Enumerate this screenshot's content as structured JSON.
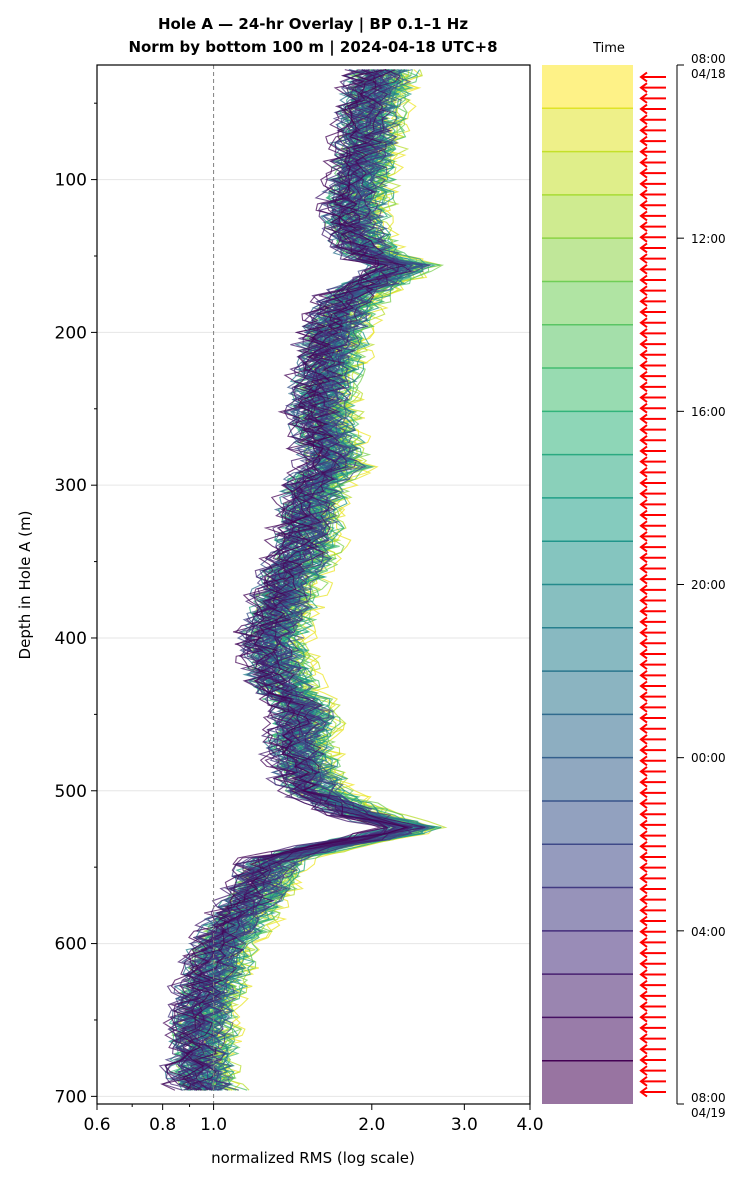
{
  "chart_data": [
    {
      "type": "line",
      "title": "Hole A — 24-hr Overlay  |  BP 0.1–1 Hz",
      "subtitle": "Norm by bottom 100 m  |  2024-04-18 UTC+8",
      "xlabel": "normalized RMS  (log scale)",
      "ylabel": "Depth in Hole A (m)",
      "x_scale": "log",
      "xlim": [
        0.6,
        4.0
      ],
      "ylim": [
        705,
        25
      ],
      "y_inverted": true,
      "x_ticks": [
        "0.6",
        "0.8",
        "1.0",
        "2.0",
        "3.0",
        "4.0"
      ],
      "x_tick_values": [
        0.6,
        0.8,
        1.0,
        2.0,
        3.0,
        4.0
      ],
      "y_ticks": [
        "100",
        "200",
        "300",
        "400",
        "500",
        "600",
        "700"
      ],
      "y_tick_values": [
        100,
        200,
        300,
        400,
        500,
        600,
        700
      ],
      "reference_line_x": 1.0,
      "grid": "horizontal",
      "depth_profile_m": [
        28,
        50,
        80,
        100,
        130,
        150,
        156,
        175,
        200,
        250,
        288,
        300,
        340,
        360,
        400,
        430,
        450,
        470,
        500,
        515,
        525,
        535,
        545,
        560,
        580,
        600,
        620,
        650,
        670,
        690,
        700
      ],
      "median_rms_profile": [
        2.1,
        2.0,
        1.95,
        1.9,
        1.85,
        2.0,
        2.3,
        1.85,
        1.7,
        1.6,
        1.7,
        1.55,
        1.5,
        1.4,
        1.3,
        1.35,
        1.5,
        1.45,
        1.55,
        1.9,
        2.4,
        1.7,
        1.3,
        1.25,
        1.15,
        1.05,
        1.0,
        0.95,
        0.95,
        0.95,
        1.0
      ],
      "series_count": 96,
      "colormap": "viridis (late = dark purple, early = yellow)"
    },
    {
      "type": "heatmap",
      "title": "Time",
      "labels": [
        "08:00\n04/18",
        "12:00",
        "16:00",
        "20:00",
        "00:00",
        "04:00",
        "08:00\n04/19"
      ],
      "label_hours": [
        0,
        4,
        8,
        12,
        16,
        20,
        24
      ],
      "band_count": 24,
      "range_hours": [
        0,
        24
      ],
      "top": "08:00 04/18",
      "bottom": "08:00 04/19",
      "marker": "red left-pointing arrows, one per trace"
    }
  ],
  "figure": {
    "title_line1": "Hole A — 24-hr Overlay  |  BP 0.1–1 Hz",
    "title_line2": "Norm by bottom 100 m  |  2024-04-18 UTC+8",
    "xlabel": "normalized RMS  (log scale)",
    "ylabel": "Depth in Hole A (m)",
    "colorbar_title": "Time",
    "colorbar_top_time": "08:00",
    "colorbar_top_date": "04/18",
    "colorbar_bottom_time": "08:00",
    "colorbar_bottom_date": "04/19",
    "colorbar_mid": [
      "12:00",
      "16:00",
      "20:00",
      "00:00",
      "04:00"
    ]
  },
  "colors": {
    "arrow": "#ff0000",
    "reference_line": "#808080",
    "grid": "#e6e6e6"
  }
}
